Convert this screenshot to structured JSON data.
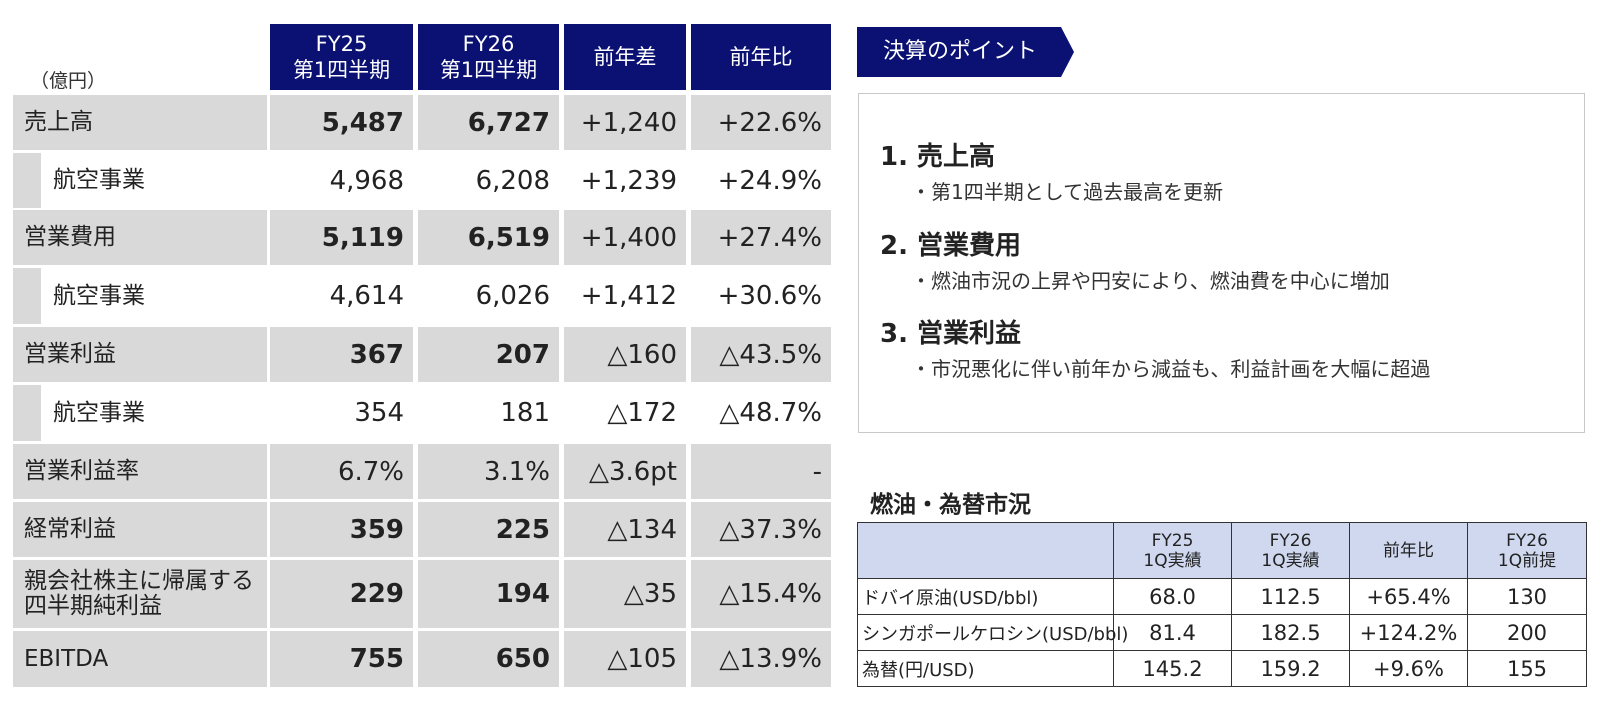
{
  "results": {
    "unit": "（億円）",
    "columns": [
      {
        "line1": "FY25",
        "line2": "第1四半期"
      },
      {
        "line1": "FY26",
        "line2": "第1四半期"
      },
      {
        "line1": "前年差",
        "line2": ""
      },
      {
        "line1": "前年比",
        "line2": ""
      }
    ],
    "rows": [
      {
        "label": "売上高",
        "fy25": "5,487",
        "fy26": "6,727",
        "diff": "+1,240",
        "ratio": "+22.6%"
      },
      {
        "label": "航空事業",
        "fy25": "4,968",
        "fy26": "6,208",
        "diff": "+1,239",
        "ratio": "+24.9%"
      },
      {
        "label": "営業費用",
        "fy25": "5,119",
        "fy26": "6,519",
        "diff": "+1,400",
        "ratio": "+27.4%"
      },
      {
        "label": "航空事業",
        "fy25": "4,614",
        "fy26": "6,026",
        "diff": "+1,412",
        "ratio": "+30.6%"
      },
      {
        "label": "営業利益",
        "fy25": "367",
        "fy26": "207",
        "diff": "△160",
        "ratio": "△43.5%"
      },
      {
        "label": "航空事業",
        "fy25": "354",
        "fy26": "181",
        "diff": "△172",
        "ratio": "△48.7%"
      },
      {
        "label": "営業利益率",
        "fy25": "6.7%",
        "fy26": "3.1%",
        "diff": "△3.6pt",
        "ratio": "-"
      },
      {
        "label": "経常利益",
        "fy25": "359",
        "fy26": "225",
        "diff": "△134",
        "ratio": "△37.3%"
      },
      {
        "label_line1": "親会社株主に帰属する",
        "label_line2": "四半期純利益",
        "fy25": "229",
        "fy26": "194",
        "diff": "△35",
        "ratio": "△15.4%"
      },
      {
        "label": "EBITDA",
        "fy25": "755",
        "fy26": "650",
        "diff": "△105",
        "ratio": "△13.9%"
      }
    ]
  },
  "key_points": {
    "title": "決算のポイント",
    "items": [
      {
        "heading": "1. 売上高",
        "detail": "・第1四半期として過去最高を更新"
      },
      {
        "heading": "2. 営業費用",
        "detail": "・燃油市況の上昇や円安により、燃油費を中心に増加"
      },
      {
        "heading": "3. 営業利益",
        "detail": "・市況悪化に伴い前年から減益も、利益計画を大幅に超過"
      }
    ]
  },
  "fuel_fx": {
    "title": "燃油・為替市況",
    "headers": [
      {
        "line1": "FY25",
        "line2": "1Q実績"
      },
      {
        "line1": "FY26",
        "line2": "1Q実績"
      },
      {
        "line1": "前年比",
        "line2": ""
      },
      {
        "line1": "FY26",
        "line2": "1Q前提"
      }
    ],
    "rows": [
      {
        "label": "ドバイ原油(USD/bbl)",
        "fy25": "68.0",
        "fy26": "112.5",
        "ratio": "+65.4%",
        "plan": "130"
      },
      {
        "label": "シンガポールケロシン(USD/bbl)",
        "fy25": "81.4",
        "fy26": "182.5",
        "ratio": "+124.2%",
        "plan": "200"
      },
      {
        "label": "為替(円/USD)",
        "fy25": "145.2",
        "fy26": "159.2",
        "ratio": "+9.6%",
        "plan": "155"
      }
    ]
  },
  "colors": {
    "header_navy": "#0a1172",
    "row_gray": "#d9d9d9",
    "fx_header_blue": "#cfd8ee"
  }
}
